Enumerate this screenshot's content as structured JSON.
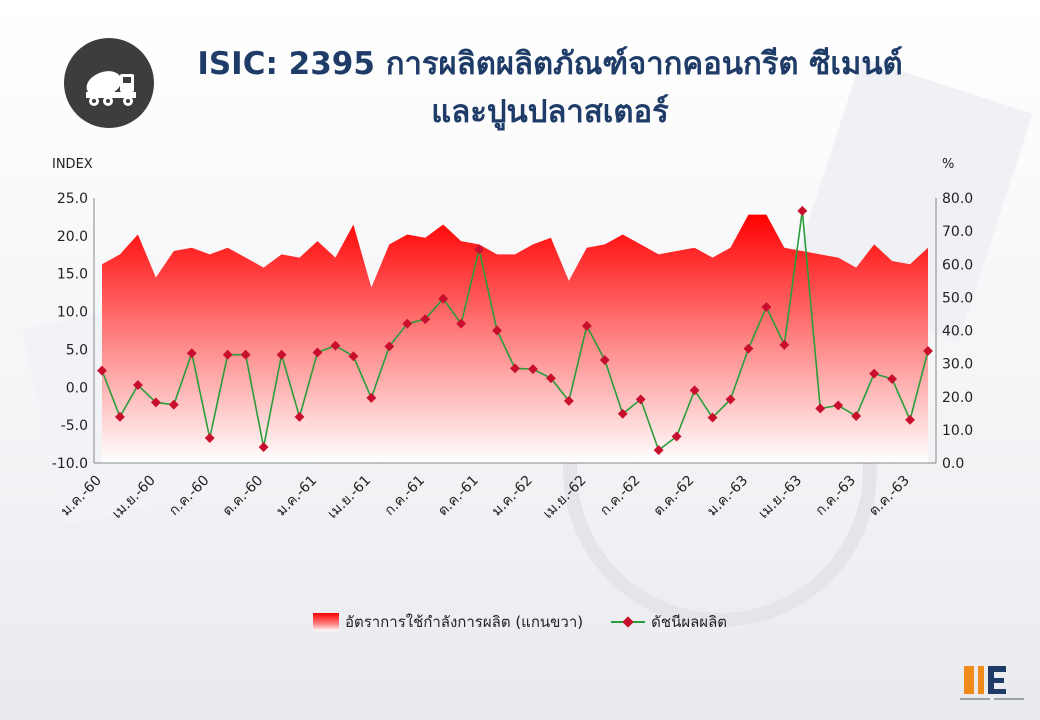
{
  "header": {
    "title_line1": "ISIC: 2395  การผลิตผลิตภัณฑ์จากคอนกรีต ซีเมนต์",
    "title_line2": "และปูนปลาสเตอร์",
    "icon": "concrete-mixer-truck-icon"
  },
  "colors": {
    "title": "#1f3c68",
    "area_top": "#ff0000",
    "area_bottom": "#ffffff",
    "line": "#2a9d3a",
    "marker": "#c8102e",
    "logo_bg": "#3d3d3d"
  },
  "chart_data": {
    "type": "line",
    "left_axis_label": "INDEX",
    "right_axis_label": "%",
    "ylim": [
      -10,
      25
    ],
    "y_ticks": [
      "25.0",
      "20.0",
      "15.0",
      "10.0",
      "5.0",
      "0.0",
      "-5.0",
      "-10.0"
    ],
    "y2lim": [
      0,
      80
    ],
    "y2_ticks": [
      "80.0",
      "70.0",
      "60.0",
      "50.0",
      "40.0",
      "30.0",
      "20.0",
      "10.0",
      "0.0"
    ],
    "x_tick_labels": [
      "ม.ค.-60",
      "เม.ย.-60",
      "ก.ค.-60",
      "ต.ค.-60",
      "ม.ค.-61",
      "เม.ย.-61",
      "ก.ค.-61",
      "ต.ค.-61",
      "ม.ค.-62",
      "เม.ย.-62",
      "ก.ค.-62",
      "ต.ค.-62",
      "ม.ค.-63",
      "เม.ย.-63",
      "ก.ค.-63",
      "ต.ค.-63"
    ],
    "x_tick_start_index": 0,
    "x_tick_step": 3,
    "grid": false,
    "legend_position": "bottom-center",
    "series": [
      {
        "name": "อัตราการใช้กำลังการผลิต (แกนขวา)",
        "type": "area",
        "axis": "right",
        "values": [
          60,
          63,
          69,
          56,
          64,
          65,
          63,
          65,
          62,
          59,
          63,
          62,
          67,
          62,
          72,
          53,
          66,
          69,
          68,
          72,
          67,
          66,
          63,
          63,
          66,
          68,
          55,
          65,
          66,
          69,
          66,
          63,
          64,
          65,
          62,
          65,
          75,
          75,
          65,
          64,
          63,
          62,
          59,
          66,
          61,
          60,
          65
        ]
      },
      {
        "name": "ดัชนีผลผลิต",
        "type": "line",
        "axis": "left",
        "values": [
          2.2,
          -3.9,
          0.3,
          -2.0,
          -2.3,
          4.5,
          -6.7,
          4.3,
          4.3,
          -7.9,
          4.3,
          -3.9,
          4.6,
          5.5,
          4.1,
          -1.4,
          5.4,
          8.4,
          9.0,
          11.7,
          8.4,
          18.2,
          7.5,
          2.5,
          2.4,
          1.2,
          -1.8,
          8.1,
          3.6,
          -3.5,
          -1.6,
          -8.3,
          -6.5,
          -0.4,
          -4.0,
          -1.6,
          5.1,
          10.6,
          5.6,
          23.3,
          -2.8,
          -2.4,
          -3.8,
          1.8,
          1.1,
          -4.3,
          4.8
        ]
      }
    ]
  }
}
